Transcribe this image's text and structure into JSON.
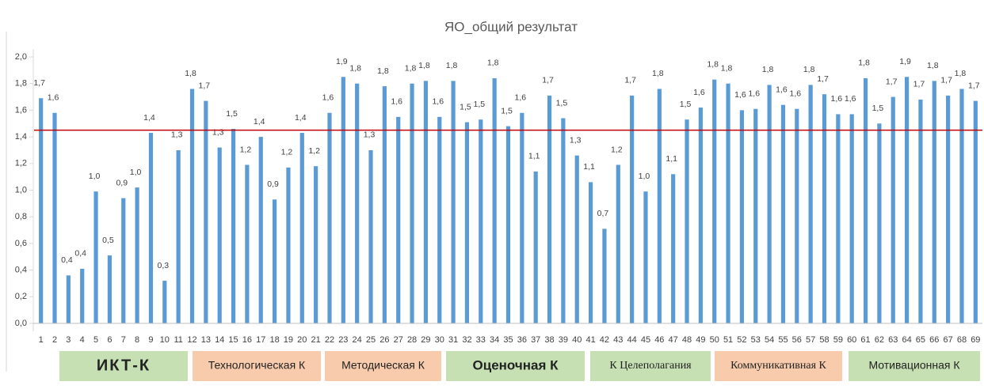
{
  "chart_data": {
    "type": "bar",
    "title": "ЯО_общий результат",
    "categories": [
      "1",
      "2",
      "3",
      "4",
      "5",
      "6",
      "7",
      "8",
      "9",
      "10",
      "11",
      "12",
      "13",
      "14",
      "15",
      "16",
      "17",
      "18",
      "19",
      "20",
      "21",
      "22",
      "23",
      "24",
      "25",
      "26",
      "27",
      "28",
      "29",
      "30",
      "31",
      "32",
      "33",
      "34",
      "35",
      "36",
      "37",
      "38",
      "39",
      "40",
      "41",
      "42",
      "43",
      "44",
      "45",
      "46",
      "47",
      "48",
      "49",
      "50",
      "51",
      "52",
      "53",
      "54",
      "55",
      "56",
      "57",
      "58",
      "59",
      "60",
      "61",
      "62",
      "63",
      "64",
      "65",
      "66",
      "67",
      "68",
      "69"
    ],
    "values": [
      1.69,
      1.58,
      0.36,
      0.41,
      0.99,
      0.51,
      0.94,
      1.02,
      1.43,
      0.32,
      1.3,
      1.76,
      1.67,
      1.32,
      1.46,
      1.19,
      1.4,
      0.93,
      1.17,
      1.43,
      1.18,
      1.58,
      1.85,
      1.8,
      1.3,
      1.78,
      1.55,
      1.8,
      1.82,
      1.55,
      1.82,
      1.51,
      1.53,
      1.84,
      1.48,
      1.58,
      1.14,
      1.71,
      1.54,
      1.26,
      1.06,
      0.71,
      1.19,
      1.71,
      0.99,
      1.76,
      1.12,
      1.53,
      1.62,
      1.83,
      1.8,
      1.6,
      1.61,
      1.79,
      1.64,
      1.61,
      1.79,
      1.72,
      1.57,
      1.57,
      1.84,
      1.5,
      1.7,
      1.85,
      1.68,
      1.82,
      1.71,
      1.76,
      1.67
    ],
    "value_labels": [
      "1,7",
      "1,6",
      "0,4",
      "0,4",
      "1,0",
      "0,5",
      "0,9",
      "1,0",
      "1,4",
      "0,3",
      "1,3",
      "1,8",
      "1,7",
      "1,3",
      "1,5",
      "1,2",
      "1,4",
      "0,9",
      "1,2",
      "1,4",
      "1,2",
      "1,6",
      "1,9",
      "1,8",
      "1,3",
      "1,8",
      "1,6",
      "1,8",
      "1,8",
      "1,6",
      "1,8",
      "1,5",
      "1,5",
      "1,8",
      "1,5",
      "1,6",
      "1,1",
      "1,7",
      "1,5",
      "1,3",
      "1,1",
      "0,7",
      "1,2",
      "1,7",
      "1,0",
      "1,8",
      "1,1",
      "1,5",
      "1,6",
      "1,8",
      "1,8",
      "1,6",
      "1,6",
      "1,8",
      "1,6",
      "1,6",
      "1,8",
      "1,7",
      "1,6",
      "1,6",
      "1,8",
      "1,5",
      "1,7",
      "1,9",
      "1,7",
      "1,8",
      "1,7",
      "1,8",
      "1,7"
    ],
    "color": "#5b9bd5",
    "reference_line": {
      "value": 1.45,
      "color": "#c00000"
    },
    "ylim": [
      0,
      2
    ],
    "yticks": [
      {
        "value": 0,
        "label": "0,0"
      },
      {
        "value": 0.2,
        "label": "0,2"
      },
      {
        "value": 0.4,
        "label": "0,4"
      },
      {
        "value": 0.6,
        "label": "0,6"
      },
      {
        "value": 0.8,
        "label": "0,8"
      },
      {
        "value": 1,
        "label": "1,0"
      },
      {
        "value": 1.2,
        "label": "1,2"
      },
      {
        "value": 1.4,
        "label": "1,4"
      },
      {
        "value": 1.6,
        "label": "1,6"
      },
      {
        "value": 1.8,
        "label": "1,8"
      },
      {
        "value": 2,
        "label": "2,0"
      }
    ],
    "grid": false,
    "groups": [
      {
        "label": "ИКТ-К",
        "color": "#c6e0b4"
      },
      {
        "label": "Технологическая К",
        "color": "#f8cbad"
      },
      {
        "label": "Методическая К",
        "color": "#f8cbad"
      },
      {
        "label": "Оценочная К",
        "color": "#c6e0b4"
      },
      {
        "label": "К Целеполагания",
        "color": "#c6e0b4"
      },
      {
        "label": "Коммуникативная К",
        "color": "#f8cbad"
      },
      {
        "label": "Мотивационная К",
        "color": "#c6e0b4"
      }
    ]
  }
}
